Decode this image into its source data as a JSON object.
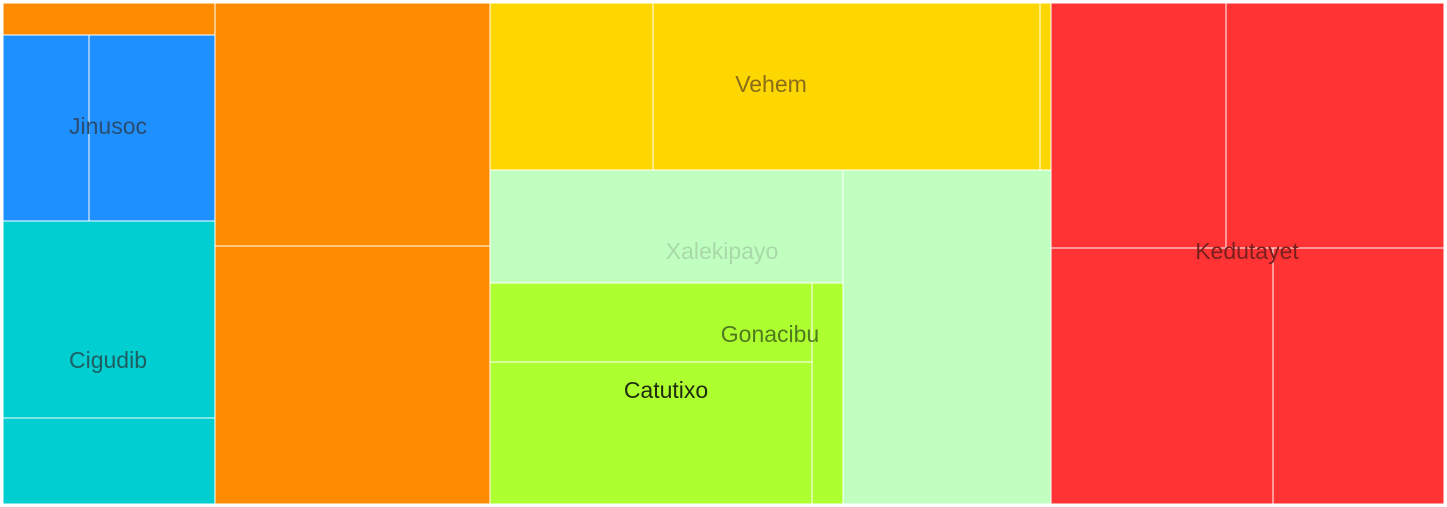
{
  "chart_data": {
    "type": "treemap",
    "title": "",
    "groups": [
      {
        "label": "Jinusoc",
        "color": "#1e90ff",
        "label_color": "#2b4c6f",
        "children": [
          {
            "value": 32
          },
          {
            "value": 24
          }
        ]
      },
      {
        "label": "Cigudib",
        "color": "#00ced1",
        "label_color": "#1f5f62",
        "children": [
          {
            "value": 42
          },
          {
            "value": 18
          }
        ]
      },
      {
        "label": "",
        "color": "#ff8c00",
        "label_color": "#7a4a10",
        "children": [
          {
            "value": 6
          },
          {
            "value": 66
          },
          {
            "value": 70
          }
        ]
      },
      {
        "label": "Vehem",
        "color": "#ffd700",
        "label_color": "#8a6d1a",
        "children": [
          {
            "value": 27
          },
          {
            "value": 64
          },
          {
            "value": 2
          }
        ]
      },
      {
        "label": "Xalekipayo",
        "color": "#c1ffc1",
        "label_color": "#a9d9a9",
        "children": [
          {
            "value": 40
          },
          {
            "value": 70
          }
        ]
      },
      {
        "label": "Gonacibu",
        "color": "#adff2f",
        "label_color": "#4f7a1f",
        "children": [
          {
            "value": 25
          },
          {
            "value": 7
          }
        ]
      },
      {
        "label": "Catutixo",
        "color": "#adff2f",
        "label_color": "#1f2a0f",
        "children": [
          {
            "value": 45
          }
        ]
      },
      {
        "label": "Kedutayet",
        "color": "#ff3333",
        "label_color": "#7a1f1f",
        "children": [
          {
            "value": 42
          },
          {
            "value": 52
          },
          {
            "value": 56
          },
          {
            "value": 43
          }
        ]
      }
    ]
  }
}
